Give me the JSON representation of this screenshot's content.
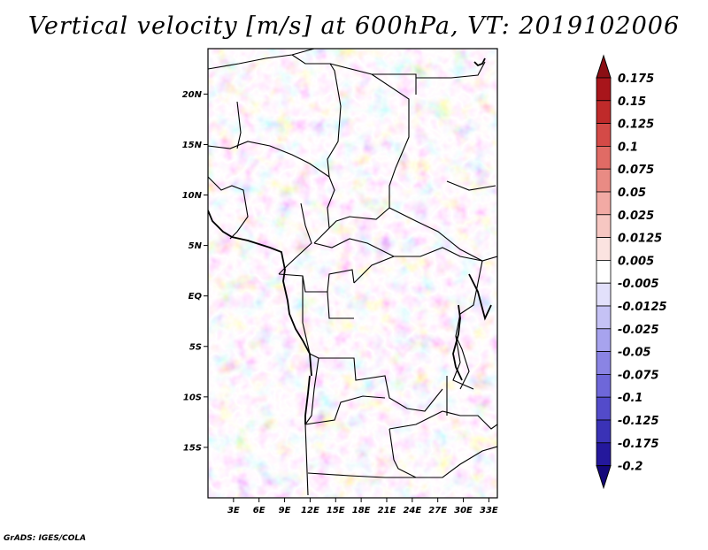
{
  "title": "Vertical velocity [m/s] at 600hPa, VT: 2019102006",
  "credit": "GrADS: IGES/COLA",
  "map": {
    "lat_ticks": [
      "20N",
      "15N",
      "10N",
      "5N",
      "EQ",
      "5S",
      "10S",
      "15S"
    ],
    "lat_values": [
      20,
      15,
      10,
      5,
      0,
      -5,
      -10,
      -15
    ],
    "lon_ticks": [
      "3E",
      "6E",
      "9E",
      "12E",
      "15E",
      "18E",
      "21E",
      "24E",
      "27E",
      "30E",
      "33E"
    ],
    "lon_values": [
      3,
      6,
      9,
      12,
      15,
      18,
      21,
      24,
      27,
      30,
      33
    ],
    "lon_range": [
      0,
      34
    ],
    "lat_range": [
      -20,
      24.5
    ]
  },
  "colorbar": {
    "labels": [
      "0.175",
      "0.15",
      "0.125",
      "0.1",
      "0.075",
      "0.05",
      "0.025",
      "0.0125",
      "0.005",
      "-0.005",
      "-0.0125",
      "-0.025",
      "-0.05",
      "-0.075",
      "-0.1",
      "-0.125",
      "-0.175",
      "-0.2"
    ],
    "colors": [
      "#8b0f14",
      "#a8151b",
      "#bf2a2a",
      "#d44a47",
      "#e06b65",
      "#e98b84",
      "#f2aaa4",
      "#f7c7c2",
      "#fbe3e0",
      "#ffffff",
      "#e2e0fb",
      "#c5c2f5",
      "#a7a3ee",
      "#8a84e4",
      "#6e67d9",
      "#534bca",
      "#3a32b6",
      "#24189c",
      "#14087a"
    ]
  }
}
